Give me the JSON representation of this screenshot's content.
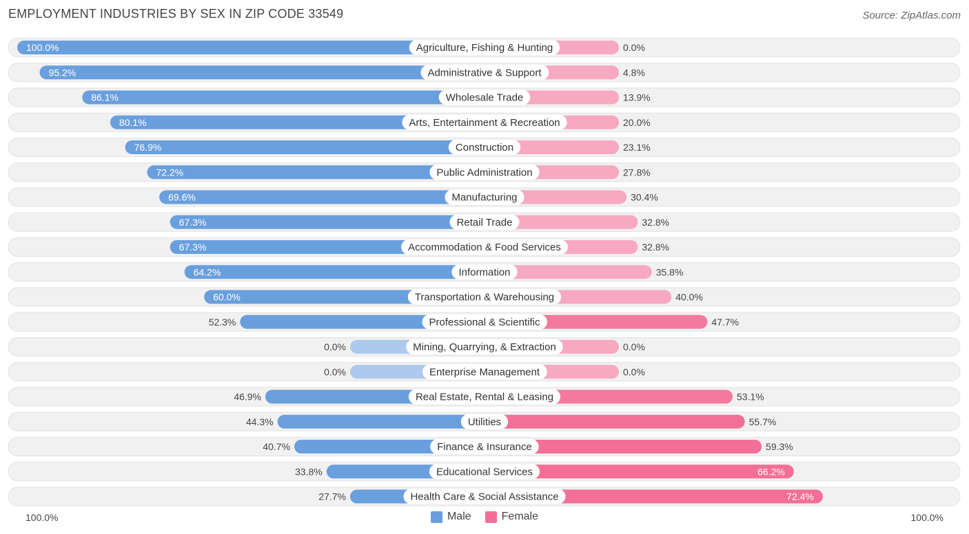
{
  "title": "EMPLOYMENT INDUSTRIES BY SEX IN ZIP CODE 33549",
  "source": "Source: ZipAtlas.com",
  "colors": {
    "male": "#6a9fde",
    "male_light": "#adc9ec",
    "female": "#f36f98",
    "female_light": "#f7a9c2",
    "row_bg": "#f1f1f1"
  },
  "chart_data": {
    "type": "bar",
    "orientation": "horizontal-diverging",
    "categories": [
      "Agriculture, Fishing & Hunting",
      "Administrative & Support",
      "Wholesale Trade",
      "Arts, Entertainment & Recreation",
      "Construction",
      "Public Administration",
      "Manufacturing",
      "Retail Trade",
      "Accommodation & Food Services",
      "Information",
      "Transportation & Warehousing",
      "Professional & Scientific",
      "Mining, Quarrying, & Extraction",
      "Enterprise Management",
      "Real Estate, Rental & Leasing",
      "Utilities",
      "Finance & Insurance",
      "Educational Services",
      "Health Care & Social Assistance"
    ],
    "series": [
      {
        "name": "Male",
        "values": [
          100.0,
          95.2,
          86.1,
          80.1,
          76.9,
          72.2,
          69.6,
          67.3,
          67.3,
          64.2,
          60.0,
          52.3,
          0.0,
          0.0,
          46.9,
          44.3,
          40.7,
          33.8,
          27.7
        ]
      },
      {
        "name": "Female",
        "values": [
          0.0,
          4.8,
          13.9,
          20.0,
          23.1,
          27.8,
          30.4,
          32.8,
          32.8,
          35.8,
          40.0,
          47.7,
          0.0,
          0.0,
          53.1,
          55.7,
          59.3,
          66.2,
          72.4
        ]
      }
    ],
    "value_labels": {
      "male": [
        "100.0%",
        "95.2%",
        "86.1%",
        "80.1%",
        "76.9%",
        "72.2%",
        "69.6%",
        "67.3%",
        "67.3%",
        "64.2%",
        "60.0%",
        "52.3%",
        "0.0%",
        "0.0%",
        "46.9%",
        "44.3%",
        "40.7%",
        "33.8%",
        "27.7%"
      ],
      "female": [
        "0.0%",
        "4.8%",
        "13.9%",
        "20.0%",
        "23.1%",
        "27.8%",
        "30.4%",
        "32.8%",
        "32.8%",
        "35.8%",
        "40.0%",
        "47.7%",
        "0.0%",
        "0.0%",
        "53.1%",
        "55.7%",
        "59.3%",
        "66.2%",
        "72.4%"
      ]
    },
    "xlim": [
      -100,
      100
    ],
    "axis_labels": {
      "left": "100.0%",
      "right": "100.0%"
    },
    "legend": [
      "Male",
      "Female"
    ],
    "legend_position": "bottom-center"
  }
}
